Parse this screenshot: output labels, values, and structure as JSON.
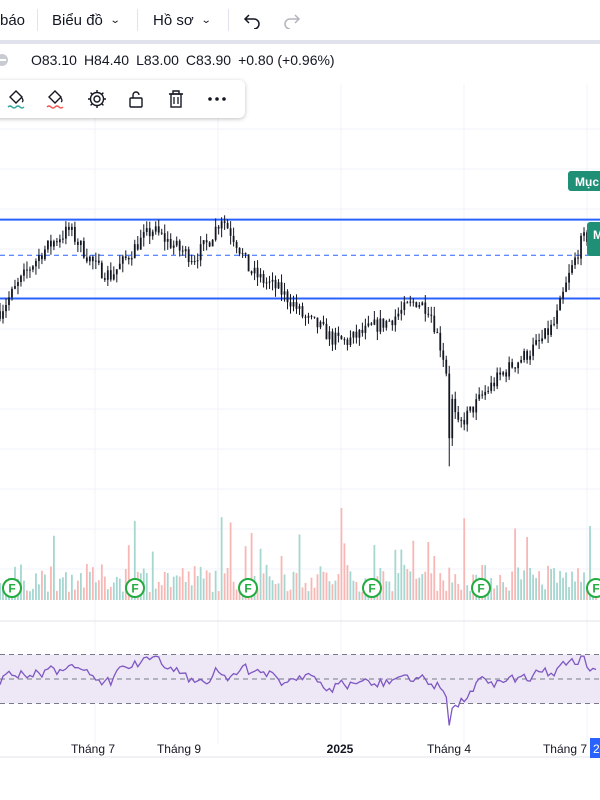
{
  "topbar": {
    "alert_label": "báo",
    "chart_menu_label": "Biểu đồ",
    "profile_menu_label": "Hồ sơ",
    "undo_icon": "undo-icon",
    "redo_icon": "redo-icon"
  },
  "legend": {
    "open": "O83.10",
    "high": "H84.40",
    "low": "L83.00",
    "close": "C83.90",
    "change": "+0.80 (+0.96%)"
  },
  "drawing_toolbar": {
    "tools": [
      "paint-bucket-green-icon",
      "paint-bucket-red-icon",
      "gear-icon",
      "unlock-icon",
      "trash-icon",
      "more-icon"
    ]
  },
  "price_tags": {
    "target_tag": "Mục",
    "secondary_tag": "M"
  },
  "x_axis": {
    "labels": [
      {
        "text": "Tháng 7",
        "bold": false
      },
      {
        "text": "Tháng 9",
        "bold": false
      },
      {
        "text": "2025",
        "bold": true
      },
      {
        "text": "Tháng 4",
        "bold": false
      },
      {
        "text": "Tháng 7",
        "bold": false
      }
    ],
    "current_marker": "2"
  },
  "event_markers": {
    "label": "F",
    "count": 6
  },
  "colors": {
    "up": "#26a69a",
    "down": "#ef5350",
    "range_line": "#2962ff",
    "rsi_line": "#7e57c2",
    "rsi_band": "#ede7f6",
    "marker": "#22ab3f",
    "tag_green": "#1f8f76"
  },
  "chart_data": {
    "type": "candlestick",
    "price_range_lines": [
      84.4,
      81.3
    ],
    "mid_dashed_line": 83.0,
    "last_bar": {
      "open": 83.1,
      "high": 84.4,
      "low": 83.0,
      "close": 83.9,
      "change": 0.8,
      "change_pct": 0.96
    },
    "rsi_bands": [
      70,
      50,
      30
    ],
    "series": [
      {
        "name": "price",
        "values": [
          80.8,
          81.6,
          82.4,
          83.1,
          83.6,
          84.0,
          83.2,
          82.5,
          82.2,
          82.8,
          83.5,
          84.0,
          83.6,
          83.2,
          82.9,
          83.5,
          84.5,
          83.6,
          82.4,
          82.0,
          81.7,
          81.2,
          80.5,
          80.2,
          79.7,
          79.6,
          79.9,
          80.2,
          80.4,
          80.8,
          81.2,
          80.9,
          79.0,
          76.2,
          76.9,
          77.6,
          78.2,
          78.7,
          79.1,
          79.6,
          80.3,
          82.1,
          83.6,
          83.9
        ]
      }
    ]
  }
}
